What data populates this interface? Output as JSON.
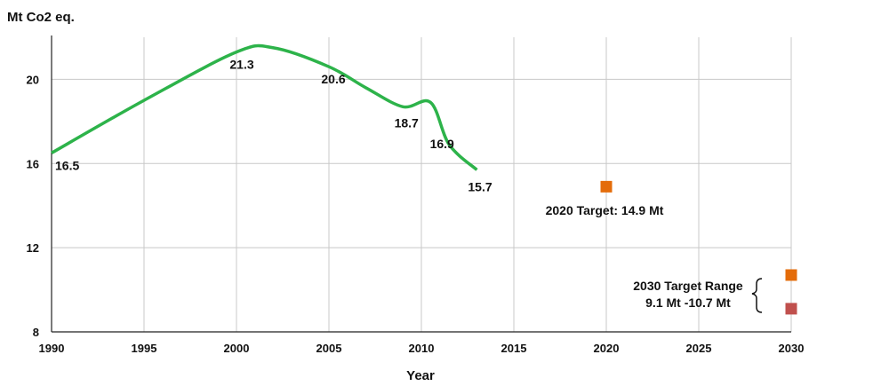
{
  "chart_data": {
    "type": "line",
    "title": "",
    "ylabel": "Mt Co2 eq.",
    "xlabel": "Year",
    "xlim": [
      1990,
      2030
    ],
    "ylim": [
      8,
      22
    ],
    "x_ticks": [
      1990,
      1995,
      2000,
      2005,
      2010,
      2015,
      2020,
      2025,
      2030
    ],
    "y_ticks": [
      8,
      12,
      16,
      20
    ],
    "grid": true,
    "legend": "none",
    "series": [
      {
        "color": "#2db34a",
        "points": [
          {
            "x": 1990,
            "y": 16.5
          },
          {
            "x": 1995,
            "y": 19.0
          },
          {
            "x": 2000,
            "y": 21.3
          },
          {
            "x": 2002,
            "y": 21.5
          },
          {
            "x": 2005,
            "y": 20.6
          },
          {
            "x": 2007,
            "y": 19.6
          },
          {
            "x": 2009,
            "y": 18.7
          },
          {
            "x": 2010.5,
            "y": 18.9
          },
          {
            "x": 2011.5,
            "y": 16.9
          },
          {
            "x": 2013,
            "y": 15.7
          }
        ]
      }
    ],
    "data_labels": [
      {
        "text": "16.5",
        "x": 1990,
        "y": 16.5
      },
      {
        "text": "21.3",
        "x": 2000,
        "y": 21.3
      },
      {
        "text": "20.6",
        "x": 2005,
        "y": 20.6
      },
      {
        "text": "18.7",
        "x": 2009,
        "y": 18.7
      },
      {
        "text": "16.9",
        "x": 2011.5,
        "y": 16.9
      },
      {
        "text": "15.7",
        "x": 2013,
        "y": 15.7
      }
    ],
    "targets": [
      {
        "x": 2020,
        "y": 14.9,
        "color": "#e46c0a",
        "label": "2020 Target: 14.9 Mt"
      },
      {
        "x": 2030,
        "y": 10.7,
        "color": "#e46c0a"
      },
      {
        "x": 2030,
        "y": 9.1,
        "color": "#c0504d"
      }
    ],
    "range_annotation": {
      "line1": "2030 Target  Range",
      "line2": "9.1 Mt -10.7 Mt"
    }
  }
}
